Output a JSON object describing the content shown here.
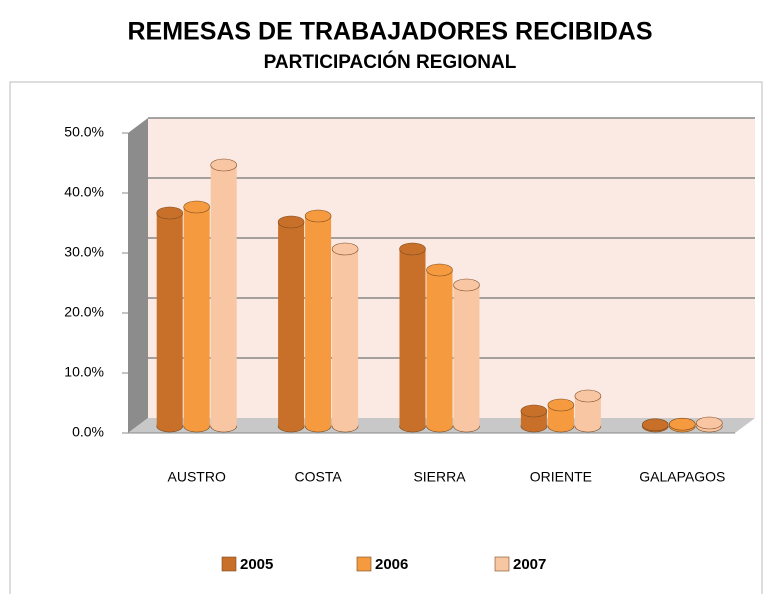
{
  "chart_data": {
    "type": "bar3d",
    "title": "REMESAS DE TRABAJADORES RECIBIDAS",
    "subtitle": "PARTICIPACIÓN REGIONAL",
    "categories": [
      "AUSTRO",
      "COSTA",
      "SIERRA",
      "ORIENTE",
      "GALAPAGOS"
    ],
    "series": [
      {
        "name": "2005",
        "color": "#c8702a",
        "values": [
          35.5,
          34,
          29.5,
          2.5,
          0.2
        ]
      },
      {
        "name": "2006",
        "color": "#f59a3e",
        "values": [
          36.5,
          35,
          26,
          3.5,
          0.3
        ]
      },
      {
        "name": "2007",
        "color": "#f9c6a4",
        "values": [
          43.5,
          29.5,
          23.5,
          5,
          0.5
        ]
      }
    ],
    "ylim": [
      0,
      50
    ],
    "yticks": [
      {
        "value": 0,
        "label": "0.0%"
      },
      {
        "value": 10,
        "label": "10.0%"
      },
      {
        "value": 20,
        "label": "20.0%"
      },
      {
        "value": 30,
        "label": "30.0%"
      },
      {
        "value": 40,
        "label": "40.0%"
      },
      {
        "value": 50,
        "label": "50.0%"
      }
    ],
    "grid": true
  }
}
